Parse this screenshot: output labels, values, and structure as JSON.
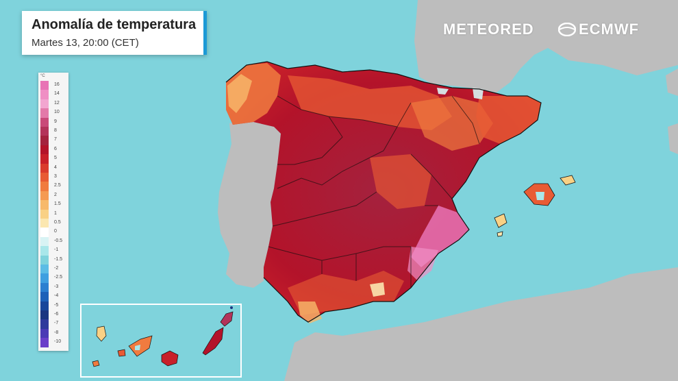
{
  "title": "Anomalía de temperatura",
  "subtitle": "Martes 13, 20:00 (CET)",
  "brand": {
    "meteored": "METEORED",
    "ecmwf": "ECMWF"
  },
  "legend": {
    "unit": "°C",
    "entries": [
      {
        "label": "16",
        "color": "#e873b5"
      },
      {
        "label": "14",
        "color": "#ef8fc4"
      },
      {
        "label": "12",
        "color": "#f2a6d0"
      },
      {
        "label": "10",
        "color": "#e37aa9"
      },
      {
        "label": "9",
        "color": "#c94a79"
      },
      {
        "label": "8",
        "color": "#b3335a"
      },
      {
        "label": "7",
        "color": "#a4223e"
      },
      {
        "label": "6",
        "color": "#b3132a"
      },
      {
        "label": "5",
        "color": "#c8202a"
      },
      {
        "label": "4",
        "color": "#da3b2d"
      },
      {
        "label": "3",
        "color": "#e85b34"
      },
      {
        "label": "2.5",
        "color": "#f07b3f"
      },
      {
        "label": "2",
        "color": "#f59a52"
      },
      {
        "label": "1.5",
        "color": "#f7b96b"
      },
      {
        "label": "1",
        "color": "#f9d185"
      },
      {
        "label": "0.5",
        "color": "#fbe7b0"
      },
      {
        "label": "0",
        "color": "#ffffff"
      },
      {
        "label": "-0.5",
        "color": "#d8f3f4"
      },
      {
        "label": "-1",
        "color": "#a9e7ea"
      },
      {
        "label": "-1.5",
        "color": "#7fd3dc"
      },
      {
        "label": "-2",
        "color": "#5cbce5"
      },
      {
        "label": "-2.5",
        "color": "#3f9fe0"
      },
      {
        "label": "-3",
        "color": "#2b7fd0"
      },
      {
        "label": "-4",
        "color": "#1d61b8"
      },
      {
        "label": "-5",
        "color": "#17469a"
      },
      {
        "label": "-6",
        "color": "#1a3580"
      },
      {
        "label": "-7",
        "color": "#2f3a9c"
      },
      {
        "label": "-8",
        "color": "#4a3ab5"
      },
      {
        "label": "-10",
        "color": "#6a3fc9"
      }
    ]
  },
  "colors": {
    "sea": "#7fd3dc",
    "land_neutral": "#bdbdbd",
    "anomaly_dark": "#a4223e",
    "anomaly_mid": "#c8202a",
    "anomaly_orange": "#e85b34",
    "anomaly_light": "#f7b96b",
    "anomaly_pink": "#e873b5",
    "accent": "#1c9ad6"
  }
}
